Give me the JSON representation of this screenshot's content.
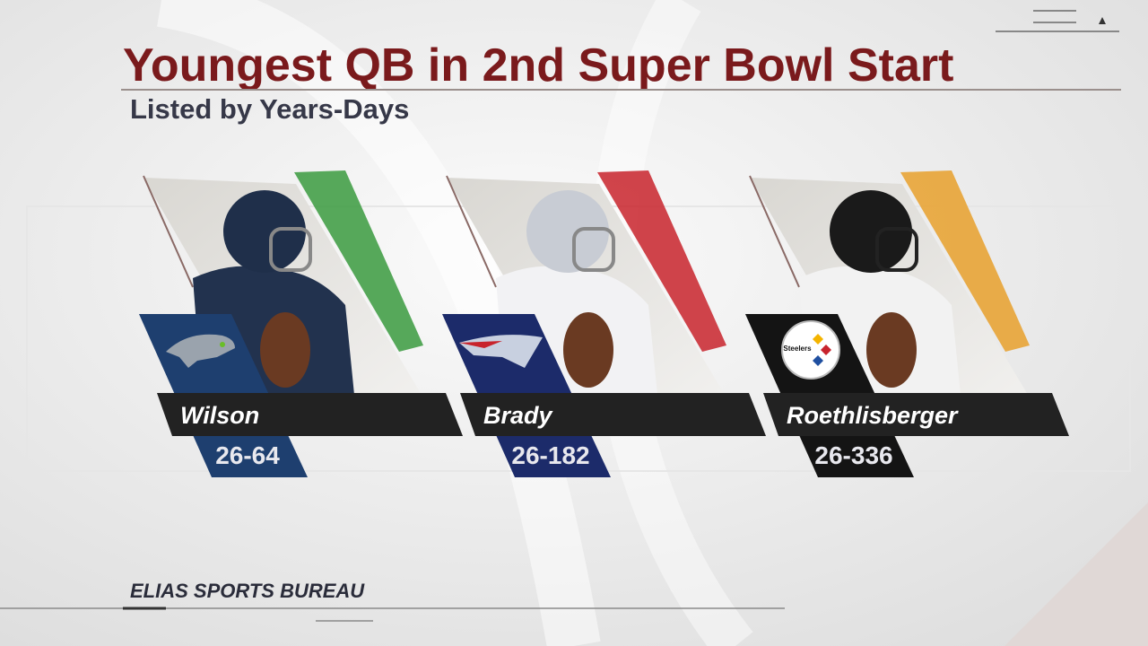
{
  "header": {
    "title": "Youngest QB in 2nd Super Bowl Start",
    "subtitle": "Listed by Years-Days"
  },
  "players": [
    {
      "name": "Wilson",
      "age": "26-64"
    },
    {
      "name": "Brady",
      "age": "26-182"
    },
    {
      "name": "Roethlisberger",
      "age": "26-336",
      "logo_text": "Steelers"
    }
  ],
  "source": "ELIAS SPORTS BUREAU"
}
